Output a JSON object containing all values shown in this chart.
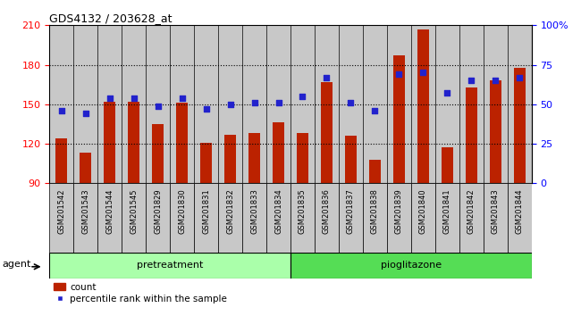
{
  "title": "GDS4132 / 203628_at",
  "samples": [
    "GSM201542",
    "GSM201543",
    "GSM201544",
    "GSM201545",
    "GSM201829",
    "GSM201830",
    "GSM201831",
    "GSM201832",
    "GSM201833",
    "GSM201834",
    "GSM201835",
    "GSM201836",
    "GSM201837",
    "GSM201838",
    "GSM201839",
    "GSM201840",
    "GSM201841",
    "GSM201842",
    "GSM201843",
    "GSM201844"
  ],
  "counts": [
    124,
    113,
    152,
    152,
    135,
    151,
    121,
    127,
    128,
    136,
    128,
    167,
    126,
    108,
    187,
    207,
    117,
    163,
    168,
    178
  ],
  "percentiles": [
    46,
    44,
    54,
    54,
    49,
    54,
    47,
    50,
    51,
    51,
    55,
    67,
    51,
    46,
    69,
    70,
    57,
    65,
    65,
    67
  ],
  "ylim_left": [
    90,
    210
  ],
  "ylim_right": [
    0,
    100
  ],
  "yticks_left": [
    90,
    120,
    150,
    180,
    210
  ],
  "yticks_right": [
    0,
    25,
    50,
    75,
    100
  ],
  "bar_color": "#bb2200",
  "marker_color": "#2222cc",
  "cell_color": "#c8c8c8",
  "pretreatment_color": "#aaffaa",
  "pioglitazone_color": "#55dd55",
  "legend_count": "count",
  "legend_percentile": "percentile rank within the sample",
  "pretreatment_n": 10,
  "pioglitazone_n": 10,
  "grid_color": "black",
  "grid_linestyle": ":",
  "grid_linewidth": 0.8
}
